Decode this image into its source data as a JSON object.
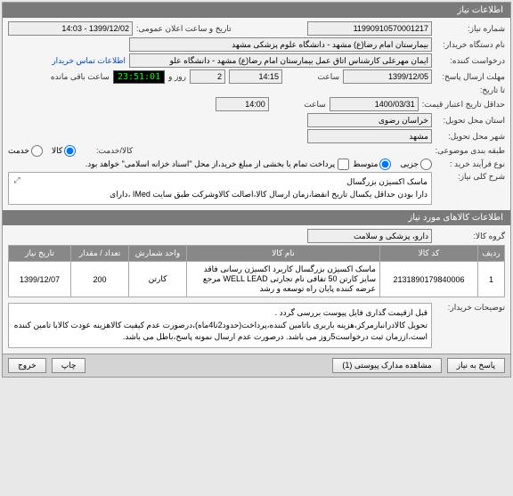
{
  "header": {
    "title": "اطلاعات نیاز"
  },
  "labels": {
    "req_no": "شماره نیاز:",
    "ann_date": "تاریخ و ساعت اعلان عمومی:",
    "buyer_name": "نام دستگاه خریدار:",
    "requester": "درخواست کننده:",
    "contact_link": "اطلاعات تماس خریدار",
    "deadline": "مهلت ارسال پاسخ:",
    "to_date": "تا تاریخ:",
    "time": "ساعت",
    "and": "و",
    "day": "روز و",
    "remaining": "ساعت باقی مانده",
    "min_credit": "حداقل تاریخ اعتبار قیمت:",
    "delivery_province": "استان محل تحویل:",
    "delivery_city": "شهر محل تحویل:",
    "category": "طبقه بندی موضوعی:",
    "goods_service": "کالا/خدمت:",
    "goods": "کالا",
    "service": "خدمت",
    "buy_type": "نوع فرآیند خرید :",
    "medium": "متوسط",
    "small": "جزیی",
    "payment_note": "پرداخت تمام یا بخشی از مبلغ خرید،از محل \"اسناد خزانه اسلامی\" خواهد بود.",
    "main_desc": "شرح کلی نیاز:",
    "items_header": "اطلاعات کالاهای مورد نیاز",
    "goods_group": "گروه کالا:",
    "buyer_notes": "توضیحات خریدار:"
  },
  "values": {
    "req_no": "11990910570001217",
    "ann_date": "1399/12/02 - 14:03",
    "buyer_name": "بیمارستان امام رضا(ع) مشهد - دانشگاه علوم پزشکی مشهد",
    "requester": "ایمان مهرعلی کارشناس اتاق عمل بیمارستان امام رضا(ع) مشهد - دانشگاه علو",
    "deadline_date": "1399/12/05",
    "deadline_time": "14:15",
    "days_left": "2",
    "countdown": "23:51:01",
    "credit_date": "1400/03/31",
    "credit_time": "14:00",
    "province": "خراسان رضوی",
    "city": "مشهد",
    "main_desc": "ماسک اکسیژن بزرگسال\nدارا بودن حداقل یکسال تاریخ انقضا،زمان ارسال کالا،اصالت کالاوشرکت طبق سایت IMed ،دارای",
    "goods_group": "دارو، پزشکی و سلامت",
    "buyer_notes": "قبل ازقیمت گذاری فایل پیوست بررسی گردد .\nتحویل کالادرانبارمرکز،هزینه باربری باتامین کننده،پرداخت(حدود2تا4ماه)،درصورت عدم کیفیت کالاهزینه عودت کالابا تامین کننده است،اززمان ثبت درخواست5روز می باشد. درصورت عدم ارسال نمونه پاسخ،باطل می باشد."
  },
  "table": {
    "cols": [
      "ردیف",
      "کد کالا",
      "نام کالا",
      "واحد شمارش",
      "تعداد / مقدار",
      "تاریخ نیاز"
    ],
    "rows": [
      {
        "idx": "1",
        "code": "2131890179840006",
        "name": "ماسک اکسیژن بزرگسال کاربرد اکسیژن رسانی فاقد سایز کارتن 50 تفافی نام تجارتی WELL LEAD مرجع عرضه کننده پایان راه توسعه و رشد",
        "unit": "کارتن",
        "qty": "200",
        "date": "1399/12/07"
      }
    ]
  },
  "footer": {
    "answer": "پاسخ به نیاز",
    "attachments": "مشاهده مدارک پیوستی (1)",
    "print": "چاپ",
    "exit": "خروج"
  }
}
